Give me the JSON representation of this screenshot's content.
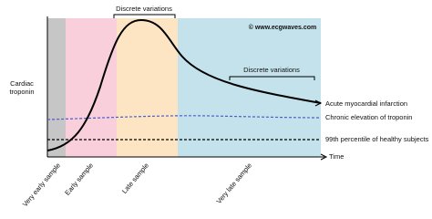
{
  "credit": "© www.ecgwaves.com",
  "axis": {
    "y_label": [
      "Cardiac",
      "troponin"
    ],
    "x_label": "Time"
  },
  "annotations": [
    "Discrete variations",
    "Discrete variations"
  ],
  "lines": [
    "Acute myocardial infarction",
    "Chronic elevation of troponin",
    "99th percentile of healthy subjects"
  ],
  "phases": [
    "Very early sample",
    "Early sample",
    "Late sample",
    "Very late sample"
  ]
}
